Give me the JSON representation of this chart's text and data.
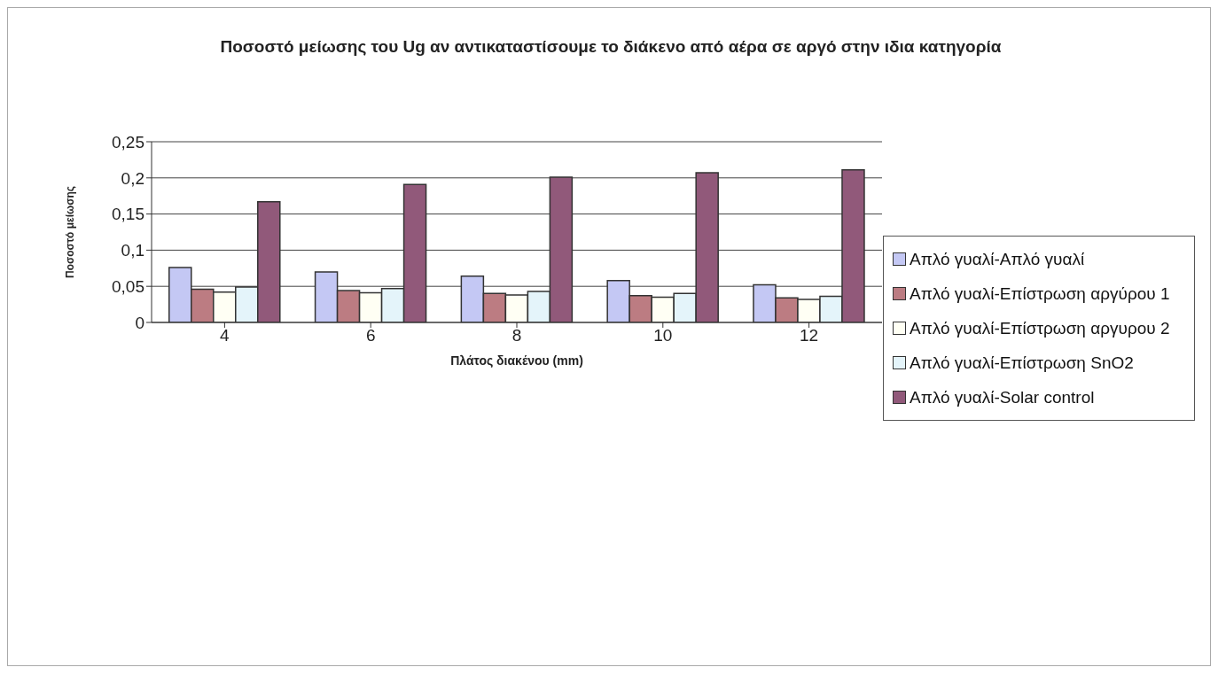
{
  "chart_data": {
    "type": "bar",
    "title": "Ποσοστό μείωσης του Ug αν αντικαταστίσουμε το διάκενο από αέρα σε αργό στην ιδια κατηγορία",
    "xlabel": "Πλάτος διακένου (mm)",
    "ylabel": "Ποσοστό μείωσης",
    "categories": [
      "4",
      "6",
      "8",
      "10",
      "12"
    ],
    "series": [
      {
        "name": "Απλό γυαλί-Απλό γυαλί",
        "color": "#c4c8f4",
        "values": [
          0.076,
          0.07,
          0.064,
          0.058,
          0.052
        ]
      },
      {
        "name": "Απλό γυαλί-Επίστρωση αργύρου 1",
        "color": "#bc7c82",
        "values": [
          0.046,
          0.044,
          0.04,
          0.037,
          0.034
        ]
      },
      {
        "name": "Απλό γυαλί-Επίστρωση αργυρου 2",
        "color": "#fffff4",
        "values": [
          0.042,
          0.041,
          0.038,
          0.035,
          0.032
        ]
      },
      {
        "name": "Απλό γυαλί-Επίστρωση SnO2",
        "color": "#e4f4fa",
        "values": [
          0.049,
          0.047,
          0.043,
          0.04,
          0.036
        ]
      },
      {
        "name": "Απλό γυαλί-Solar control",
        "color": "#91597a",
        "values": [
          0.167,
          0.191,
          0.201,
          0.207,
          0.211
        ]
      }
    ],
    "ylim": [
      0,
      0.25
    ],
    "yticks": [
      0,
      {
        "value": 0.05,
        "label": "0,05"
      },
      {
        "value": 0.1,
        "label": "0,1"
      },
      {
        "value": 0.15,
        "label": "0,15"
      },
      {
        "value": 0.2,
        "label": "0,2"
      },
      {
        "value": 0.25,
        "label": "0,25"
      }
    ],
    "grid": "y",
    "legend": "right"
  }
}
